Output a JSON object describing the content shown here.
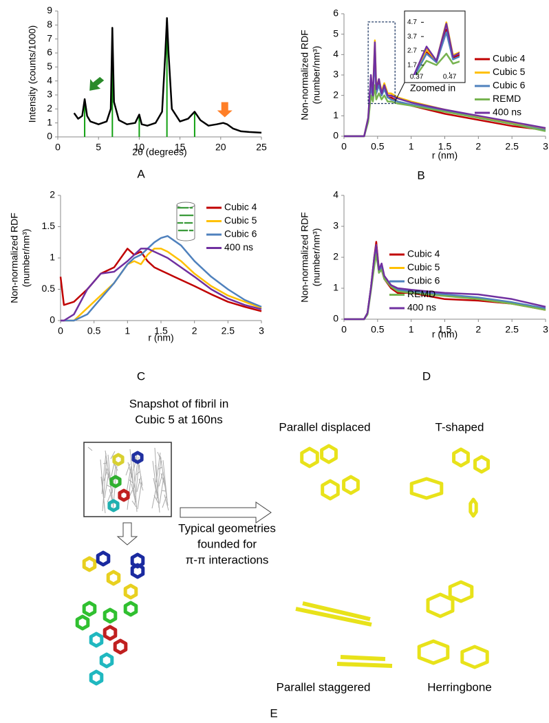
{
  "chart_data": [
    {
      "type": "line",
      "label": "A",
      "xlabel": "2θ (degrees)",
      "ylabel": "Intensity (counts/1000)",
      "xlim": [
        0,
        25
      ],
      "ylim": [
        0,
        9
      ],
      "xticks": [
        0,
        5,
        10,
        15,
        20,
        25
      ],
      "yticks": [
        0,
        1,
        2,
        3,
        4,
        5,
        6,
        7,
        8,
        9
      ],
      "series": [
        {
          "color": "#000000",
          "x": [
            2,
            2.5,
            3,
            3.3,
            3.6,
            4,
            5,
            6,
            6.5,
            6.7,
            6.9,
            7.5,
            8.5,
            9.5,
            10,
            10.3,
            11,
            12,
            12.8,
            13.2,
            13.4,
            13.6,
            14,
            15,
            16,
            16.8,
            17.5,
            18.5,
            19.5,
            20.3,
            20.8,
            21.5,
            22.5,
            23.5,
            25
          ],
          "values": [
            1.7,
            1.3,
            1.5,
            2.7,
            1.5,
            1.1,
            0.9,
            1.1,
            2,
            7.8,
            2.5,
            1.2,
            0.9,
            1,
            1.6,
            0.9,
            0.8,
            1,
            1.8,
            6,
            8.5,
            6,
            2,
            1.1,
            1.3,
            1.8,
            1.2,
            0.8,
            0.9,
            1,
            0.9,
            0.6,
            0.4,
            0.35,
            0.3
          ]
        }
      ],
      "peak_lines": {
        "color": "#11a011",
        "x": [
          3.3,
          6.7,
          10,
          13.4,
          16.8
        ],
        "values": [
          2.7,
          7.8,
          1.5,
          8.5,
          1.8
        ]
      },
      "arrows": [
        {
          "x": 3.9,
          "y": 3.3,
          "color": "#2a8a2a"
        },
        {
          "x": 20.5,
          "y": 1.4,
          "color": "#ff7f27"
        }
      ]
    },
    {
      "type": "line",
      "label": "B",
      "xlabel": "r (nm)",
      "ylabel": [
        "Non-normalized RDF",
        "(number/nm³)"
      ],
      "xlim": [
        0,
        3
      ],
      "ylim": [
        0,
        6
      ],
      "xticks": [
        0,
        0.5,
        1,
        1.5,
        2,
        2.5,
        3
      ],
      "yticks": [
        0,
        1,
        2,
        3,
        4,
        5,
        6
      ],
      "x": [
        0,
        0.3,
        0.36,
        0.4,
        0.43,
        0.46,
        0.48,
        0.52,
        0.56,
        0.6,
        0.65,
        0.7,
        0.8,
        1,
        1.5,
        2,
        2.5,
        3
      ],
      "series": [
        {
          "name": "Cubic 4",
          "color": "#c00000",
          "values": [
            0,
            0,
            0.8,
            2.6,
            1.9,
            4.2,
            2.2,
            2.6,
            2.0,
            2.4,
            1.9,
            1.9,
            1.7,
            1.5,
            1.1,
            0.8,
            0.5,
            0.3
          ]
        },
        {
          "name": "Cubic 5",
          "color": "#ffc000",
          "values": [
            0,
            0,
            0.9,
            2.8,
            2.0,
            4.7,
            2.4,
            2.8,
            2.2,
            2.6,
            2.1,
            2.1,
            1.9,
            1.7,
            1.3,
            0.95,
            0.65,
            0.35
          ]
        },
        {
          "name": "Cubic 6",
          "color": "#4f81bd",
          "values": [
            0,
            0,
            0.8,
            2.5,
            1.9,
            4.0,
            2.1,
            2.5,
            2.0,
            2.3,
            1.9,
            1.8,
            1.7,
            1.55,
            1.25,
            0.9,
            0.6,
            0.3
          ]
        },
        {
          "name": "REMD",
          "color": "#77b350",
          "values": [
            0,
            0,
            0.7,
            2.0,
            1.7,
            2.5,
            1.8,
            2.1,
            1.8,
            2.0,
            1.7,
            1.7,
            1.6,
            1.5,
            1.2,
            0.9,
            0.6,
            0.25
          ]
        },
        {
          "name": "400 ns",
          "color": "#7030a0",
          "values": [
            0,
            0,
            0.9,
            3.0,
            2.0,
            4.6,
            2.3,
            2.8,
            2.1,
            2.5,
            2.0,
            2.0,
            1.85,
            1.65,
            1.3,
            1.0,
            0.7,
            0.4
          ]
        }
      ],
      "inset": {
        "xlim": [
          0.35,
          0.5
        ],
        "ylim": [
          1.2,
          5.2
        ],
        "xticks": [
          0.37,
          0.47
        ],
        "yticks": [
          4.7,
          3.7,
          2.7,
          1.7
        ],
        "annotation": "Zoomed in"
      }
    },
    {
      "type": "line",
      "label": "C",
      "xlabel": "r (nm)",
      "ylabel": [
        "Non-normalized RDF",
        "(number/nm³)"
      ],
      "xlim": [
        0,
        3
      ],
      "ylim": [
        0,
        2
      ],
      "xticks": [
        0,
        0.5,
        1,
        1.5,
        2,
        2.5,
        3
      ],
      "yticks": [
        0,
        0.5,
        1,
        1.5,
        2
      ],
      "x": [
        0,
        0.05,
        0.2,
        0.4,
        0.6,
        0.8,
        1.0,
        1.1,
        1.2,
        1.3,
        1.4,
        1.5,
        1.6,
        1.8,
        2,
        2.25,
        2.5,
        2.75,
        3
      ],
      "series": [
        {
          "name": "Cubic 4",
          "color": "#c00000",
          "values": [
            0.7,
            0.25,
            0.3,
            0.5,
            0.75,
            0.85,
            1.15,
            1.05,
            1.1,
            0.95,
            0.85,
            0.8,
            0.75,
            0.65,
            0.55,
            0.42,
            0.3,
            0.22,
            0.15
          ]
        },
        {
          "name": "Cubic 5",
          "color": "#ffc000",
          "values": [
            0,
            0,
            0,
            0.2,
            0.4,
            0.6,
            0.9,
            0.95,
            0.9,
            1.05,
            1.15,
            1.15,
            1.1,
            0.95,
            0.75,
            0.55,
            0.4,
            0.3,
            0.2
          ]
        },
        {
          "name": "Cubic 6",
          "color": "#4f81bd",
          "values": [
            0,
            0,
            0,
            0.1,
            0.35,
            0.6,
            0.9,
            1.0,
            1.05,
            1.15,
            1.25,
            1.32,
            1.35,
            1.2,
            0.95,
            0.7,
            0.5,
            0.33,
            0.22
          ]
        },
        {
          "name": "400 ns",
          "color": "#7030a0",
          "values": [
            0,
            0,
            0.1,
            0.5,
            0.75,
            0.78,
            0.95,
            1.05,
            1.15,
            1.15,
            1.1,
            1.05,
            1.0,
            0.85,
            0.7,
            0.5,
            0.35,
            0.25,
            0.18
          ]
        }
      ]
    },
    {
      "type": "line",
      "label": "D",
      "xlabel": "r (nm)",
      "ylabel": [
        "Non-normalized RDF",
        "(number/nm³)"
      ],
      "xlim": [
        0,
        3
      ],
      "ylim": [
        0,
        4
      ],
      "xticks": [
        0,
        0.5,
        1,
        1.5,
        2,
        2.5,
        3
      ],
      "yticks": [
        0,
        1,
        2,
        3,
        4
      ],
      "x": [
        0,
        0.3,
        0.35,
        0.4,
        0.45,
        0.48,
        0.52,
        0.56,
        0.6,
        0.7,
        0.8,
        1,
        1.5,
        2,
        2.5,
        3
      ],
      "series": [
        {
          "name": "Cubic 4",
          "color": "#c00000",
          "values": [
            0,
            0,
            0.2,
            1.0,
            2.0,
            2.5,
            1.6,
            1.6,
            1.3,
            1.0,
            0.85,
            0.85,
            0.65,
            0.6,
            0.5,
            0.3
          ]
        },
        {
          "name": "Cubic 5",
          "color": "#ffc000",
          "values": [
            0,
            0,
            0.2,
            1.0,
            1.9,
            2.4,
            1.5,
            1.7,
            1.35,
            1.1,
            0.95,
            0.9,
            0.8,
            0.65,
            0.5,
            0.3
          ]
        },
        {
          "name": "Cubic 6",
          "color": "#4f81bd",
          "values": [
            0,
            0,
            0.2,
            1.0,
            1.9,
            2.3,
            1.5,
            1.7,
            1.3,
            1.1,
            0.95,
            0.9,
            0.8,
            0.7,
            0.55,
            0.35
          ]
        },
        {
          "name": "REMD",
          "color": "#77b350",
          "values": [
            0,
            0,
            0.15,
            0.9,
            1.7,
            2.1,
            1.5,
            1.6,
            1.3,
            1.05,
            0.9,
            0.85,
            0.75,
            0.65,
            0.5,
            0.3
          ]
        },
        {
          "name": "400 ns",
          "color": "#7030a0",
          "values": [
            0,
            0,
            0.2,
            1.0,
            2.0,
            2.4,
            1.6,
            1.8,
            1.4,
            1.1,
            1.0,
            0.95,
            0.85,
            0.8,
            0.65,
            0.4
          ]
        }
      ]
    }
  ],
  "panel_e": {
    "snapshot_title": [
      "Snapshot of fibril in",
      "Cubic 5 at 160ns"
    ],
    "caption": [
      "Typical geometries",
      "founded for",
      "π-π interactions"
    ],
    "geometries": [
      "Parallel displaced",
      "T-shaped",
      "Parallel staggered",
      "Herringbone"
    ],
    "label": "E"
  }
}
